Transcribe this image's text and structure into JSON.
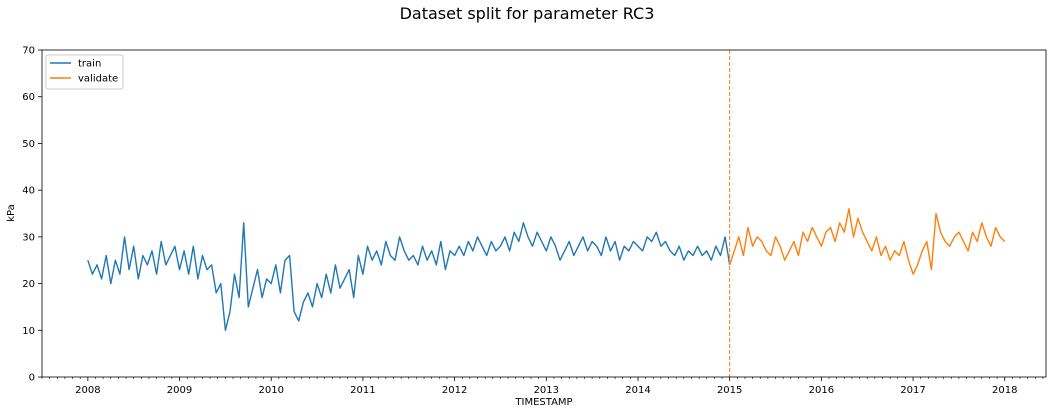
{
  "chart_data": {
    "type": "line",
    "title": "Dataset split for parameter RC3",
    "xlabel": "TIMESTAMP",
    "ylabel": "kPa",
    "xlim": [
      2007.5,
      2018.45
    ],
    "ylim": [
      0,
      70
    ],
    "x_ticks": [
      "2008",
      "2009",
      "2010",
      "2011",
      "2012",
      "2013",
      "2014",
      "2015",
      "2016",
      "2017",
      "2018"
    ],
    "y_ticks": [
      "0",
      "10",
      "20",
      "30",
      "40",
      "50",
      "60",
      "70"
    ],
    "legend_position": "top-left",
    "split_marker": {
      "x": 2015.0,
      "style": "dashed",
      "color": "#ff7f0e"
    },
    "series": [
      {
        "name": "train",
        "color": "#1f77b4",
        "x": [
          2008.0,
          2008.05,
          2008.1,
          2008.15,
          2008.2,
          2008.25,
          2008.3,
          2008.35,
          2008.4,
          2008.45,
          2008.5,
          2008.55,
          2008.6,
          2008.65,
          2008.7,
          2008.75,
          2008.8,
          2008.85,
          2008.9,
          2008.95,
          2009.0,
          2009.05,
          2009.1,
          2009.15,
          2009.2,
          2009.25,
          2009.3,
          2009.35,
          2009.4,
          2009.45,
          2009.5,
          2009.55,
          2009.6,
          2009.65,
          2009.7,
          2009.75,
          2009.8,
          2009.85,
          2009.9,
          2009.95,
          2010.0,
          2010.05,
          2010.1,
          2010.15,
          2010.2,
          2010.25,
          2010.3,
          2010.35,
          2010.4,
          2010.45,
          2010.5,
          2010.55,
          2010.6,
          2010.65,
          2010.7,
          2010.75,
          2010.8,
          2010.85,
          2010.9,
          2010.95,
          2011.0,
          2011.05,
          2011.1,
          2011.15,
          2011.2,
          2011.25,
          2011.3,
          2011.35,
          2011.4,
          2011.45,
          2011.5,
          2011.55,
          2011.6,
          2011.65,
          2011.7,
          2011.75,
          2011.8,
          2011.85,
          2011.9,
          2011.95,
          2012.0,
          2012.05,
          2012.1,
          2012.15,
          2012.2,
          2012.25,
          2012.3,
          2012.35,
          2012.4,
          2012.45,
          2012.5,
          2012.55,
          2012.6,
          2012.65,
          2012.7,
          2012.75,
          2012.8,
          2012.85,
          2012.9,
          2012.95,
          2013.0,
          2013.05,
          2013.1,
          2013.15,
          2013.2,
          2013.25,
          2013.3,
          2013.35,
          2013.4,
          2013.45,
          2013.5,
          2013.55,
          2013.6,
          2013.65,
          2013.7,
          2013.75,
          2013.8,
          2013.85,
          2013.9,
          2013.95,
          2014.0,
          2014.05,
          2014.1,
          2014.15,
          2014.2,
          2014.25,
          2014.3,
          2014.35,
          2014.4,
          2014.45,
          2014.5,
          2014.55,
          2014.6,
          2014.65,
          2014.7,
          2014.75,
          2014.8,
          2014.85,
          2014.9,
          2014.95,
          2015.0
        ],
        "y": [
          25,
          22,
          24,
          21,
          26,
          20,
          25,
          22,
          30,
          23,
          28,
          21,
          26,
          24,
          27,
          22,
          29,
          24,
          26,
          28,
          23,
          27,
          22,
          28,
          21,
          26,
          23,
          24,
          18,
          20,
          10,
          14,
          22,
          17,
          33,
          15,
          19,
          23,
          17,
          21,
          20,
          24,
          18,
          25,
          26,
          14,
          12,
          16,
          18,
          15,
          20,
          17,
          22,
          18,
          24,
          19,
          21,
          23,
          17,
          26,
          22,
          28,
          25,
          27,
          24,
          29,
          26,
          25,
          30,
          27,
          25,
          26,
          24,
          28,
          25,
          27,
          24,
          29,
          23,
          27,
          26,
          28,
          26,
          29,
          27,
          30,
          28,
          26,
          29,
          27,
          28,
          30,
          27,
          31,
          29,
          33,
          30,
          28,
          31,
          29,
          27,
          30,
          28,
          25,
          27,
          29,
          26,
          28,
          30,
          27,
          29,
          28,
          26,
          30,
          27,
          29,
          25,
          28,
          27,
          29,
          28,
          27,
          30,
          29,
          31,
          28,
          29,
          27,
          26,
          28,
          25,
          27,
          26,
          28,
          26,
          27,
          25,
          28,
          26,
          30,
          24
        ]
      },
      {
        "name": "validate",
        "color": "#ff7f0e",
        "x": [
          2015.0,
          2015.05,
          2015.1,
          2015.15,
          2015.2,
          2015.25,
          2015.3,
          2015.35,
          2015.4,
          2015.45,
          2015.5,
          2015.55,
          2015.6,
          2015.65,
          2015.7,
          2015.75,
          2015.8,
          2015.85,
          2015.9,
          2015.95,
          2016.0,
          2016.05,
          2016.1,
          2016.15,
          2016.2,
          2016.25,
          2016.3,
          2016.35,
          2016.4,
          2016.45,
          2016.5,
          2016.55,
          2016.6,
          2016.65,
          2016.7,
          2016.75,
          2016.8,
          2016.85,
          2016.9,
          2016.95,
          2017.0,
          2017.05,
          2017.1,
          2017.15,
          2017.2,
          2017.25,
          2017.3,
          2017.35,
          2017.4,
          2017.45,
          2017.5,
          2017.55,
          2017.6,
          2017.65,
          2017.7,
          2017.75,
          2017.8,
          2017.85,
          2017.9,
          2017.95,
          2018.0
        ],
        "y": [
          24,
          27,
          30,
          26,
          32,
          28,
          30,
          29,
          27,
          26,
          30,
          28,
          25,
          27,
          29,
          26,
          31,
          29,
          32,
          30,
          28,
          31,
          32,
          29,
          33,
          31,
          36,
          30,
          34,
          31,
          29,
          27,
          30,
          26,
          28,
          25,
          27,
          26,
          29,
          25,
          22,
          24,
          27,
          29,
          23,
          35,
          31,
          29,
          28,
          30,
          31,
          29,
          27,
          31,
          29,
          33,
          30,
          28,
          32,
          30,
          29
        ]
      }
    ]
  }
}
